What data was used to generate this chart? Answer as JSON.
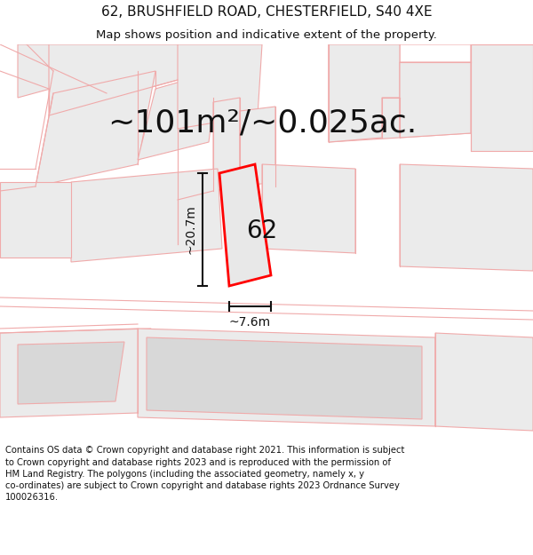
{
  "title": "62, BRUSHFIELD ROAD, CHESTERFIELD, S40 4XE",
  "subtitle": "Map shows position and indicative extent of the property.",
  "footer": "Contains OS data © Crown copyright and database right 2021. This information is subject to Crown copyright and database rights 2023 and is reproduced with the permission of HM Land Registry. The polygons (including the associated geometry, namely x, y co-ordinates) are subject to Crown copyright and database rights 2023 Ordnance Survey 100026316.",
  "area_label": "~101m²/~0.025ac.",
  "width_label": "~7.6m",
  "height_label": "~20.7m",
  "plot_number": "62",
  "bg_color": "#ffffff",
  "map_bg": "#ffffff",
  "plot_fill": "#e8e8e8",
  "plot_edge_color": "#ff0000",
  "neighbor_fill": "#ebebeb",
  "neighbor_edge": "#f0aaaa",
  "dim_color": "#111111",
  "title_fontsize": 11,
  "subtitle_fontsize": 9.5,
  "footer_fontsize": 7.2,
  "area_fontsize": 26,
  "dim_label_fontsize": 10,
  "plot_label_fontsize": 20
}
